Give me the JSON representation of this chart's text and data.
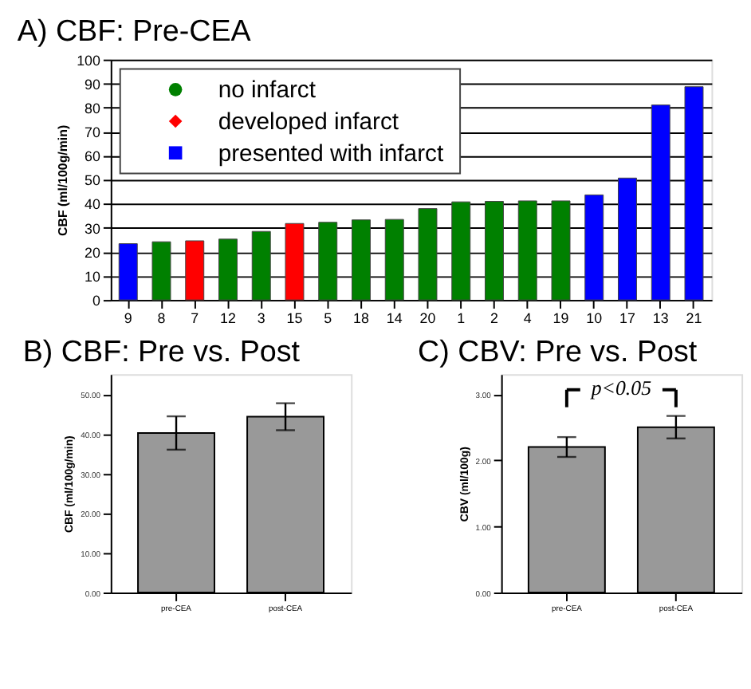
{
  "chart_data": [
    {
      "type": "bar",
      "title": "A) CBF: Pre-CEA",
      "ylabel": "CBF (ml/100g/min)",
      "categories": [
        "9",
        "8",
        "7",
        "12",
        "3",
        "15",
        "5",
        "18",
        "14",
        "20",
        "1",
        "2",
        "4",
        "19",
        "10",
        "17",
        "13",
        "21"
      ],
      "series": [
        {
          "name": "no infarct",
          "color": "#008000",
          "marker": "circle",
          "values": [
            null,
            24.2,
            null,
            25.3,
            28.5,
            null,
            32.3,
            33.3,
            33.5,
            38,
            40.8,
            41,
            41.2,
            41.2,
            null,
            null,
            null,
            null
          ]
        },
        {
          "name": "developed infarct",
          "color": "#ff0000",
          "marker": "diamond",
          "values": [
            null,
            null,
            24.6,
            null,
            null,
            31.8,
            null,
            null,
            null,
            null,
            null,
            null,
            null,
            null,
            null,
            null,
            null,
            null
          ]
        },
        {
          "name": "presented with infarct",
          "color": "#0000ff",
          "marker": "square",
          "values": [
            23.4,
            null,
            null,
            null,
            null,
            null,
            null,
            null,
            null,
            null,
            null,
            null,
            null,
            null,
            43.7,
            50.7,
            81.1,
            88.7
          ]
        }
      ],
      "stacked": true,
      "ylim": [
        0,
        100
      ],
      "yticks": [
        0,
        10,
        20,
        30,
        40,
        50,
        60,
        70,
        80,
        90,
        100
      ],
      "grid": "y",
      "legend": "top left"
    },
    {
      "type": "bar",
      "title": "B) CBF: Pre vs. Post",
      "ylabel": "CBF (ml/100g/min)",
      "categories": [
        "pre-CEA",
        "post-CEA"
      ],
      "values": [
        40.2,
        44.3
      ],
      "errors": [
        4.2,
        3.4
      ],
      "color": "#999999",
      "ylim": [
        0,
        55
      ],
      "yticks": [
        {
          "value": 0,
          "label": "0.00"
        },
        {
          "value": 10,
          "label": "10.00"
        },
        {
          "value": 20,
          "label": "20.00"
        },
        {
          "value": 30,
          "label": "30.00"
        },
        {
          "value": 40,
          "label": "40.00"
        },
        {
          "value": 50,
          "label": "50.00"
        }
      ]
    },
    {
      "type": "bar",
      "title": "C) CBV: Pre vs. Post",
      "ylabel": "CBV (ml/100g)",
      "categories": [
        "pre-CEA",
        "post-CEA"
      ],
      "values": [
        2.2,
        2.5
      ],
      "errors": [
        0.15,
        0.17
      ],
      "color": "#999999",
      "ylim": [
        0,
        3.3
      ],
      "yticks": [
        {
          "value": 0,
          "label": "0.00"
        },
        {
          "value": 1,
          "label": "1.00"
        },
        {
          "value": 2,
          "label": "2.00"
        },
        {
          "value": 3,
          "label": "3.00"
        }
      ],
      "annotations": [
        "p<0.05"
      ]
    }
  ]
}
